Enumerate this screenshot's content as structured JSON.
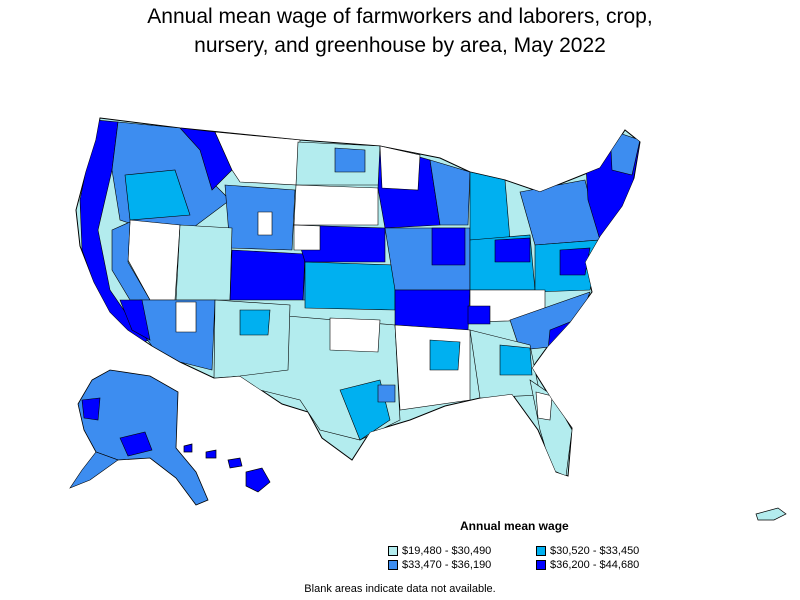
{
  "title": {
    "line1": "Annual mean wage of farmworkers and laborers, crop,",
    "line2": "nursery, and greenhouse by area, May 2022"
  },
  "legend": {
    "title": "Annual mean wage",
    "items": [
      {
        "label": "$19,480 - $30,490",
        "color": "#b3ecee"
      },
      {
        "label": "$30,520 - $33,450",
        "color": "#00b0f0"
      },
      {
        "label": "$33,470 - $36,190",
        "color": "#3d8df0"
      },
      {
        "label": "$36,200 - $44,680",
        "color": "#0000ff"
      }
    ]
  },
  "note": "Blank areas indicate data not available.",
  "colors": {
    "outline": "#000000",
    "blank": "#ffffff"
  }
}
